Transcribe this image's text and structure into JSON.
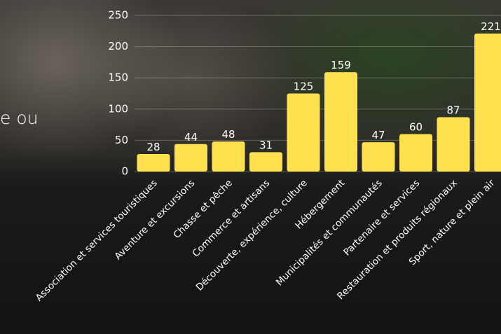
{
  "overlay_text": "e ou",
  "chart_data": {
    "type": "bar",
    "categories": [
      "Association et services touristiques",
      "Aventure et excursions",
      "Chasse et pêche",
      "Commerce et artisans",
      "Découverte, expérience, culture",
      "Hébergement",
      "Municipalités et communautés",
      "Partenaire et services",
      "Restauration et produits régionaux",
      "Sport, nature et plein air"
    ],
    "values": [
      28,
      44,
      48,
      31,
      125,
      159,
      47,
      60,
      87,
      221
    ],
    "color": "#ffe14f",
    "ylim": [
      0,
      250
    ],
    "yticks": [
      0,
      50,
      100,
      150,
      200,
      250
    ],
    "grid": true
  }
}
